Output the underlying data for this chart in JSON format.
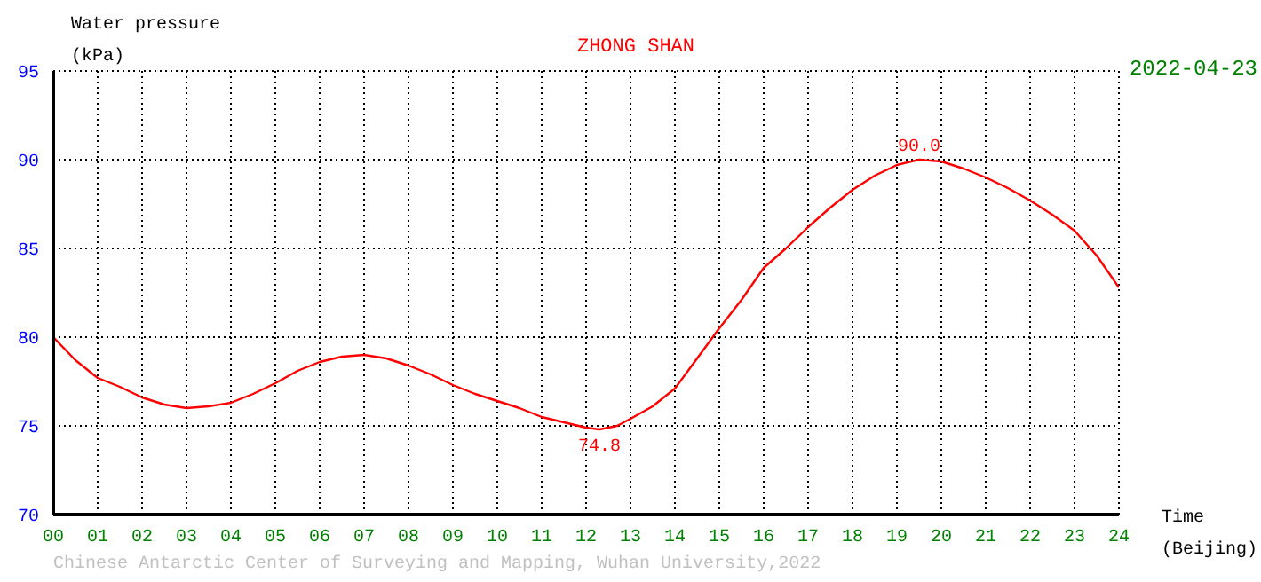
{
  "chart_data": {
    "type": "line",
    "title": "ZHONG SHAN",
    "subtitle": "2022-04-23",
    "xlabel": "Time\n(Beijing)",
    "ylabel": "Water pressure\n(kPa)",
    "x": [
      0,
      0.5,
      1,
      1.5,
      2,
      2.5,
      3,
      3.5,
      4,
      4.5,
      5,
      5.5,
      6,
      6.5,
      7,
      7.5,
      8,
      8.5,
      9,
      9.5,
      10,
      10.5,
      11,
      11.5,
      12,
      12.3,
      12.7,
      13,
      13.5,
      14,
      14.5,
      15,
      15.5,
      16,
      16.5,
      17,
      17.5,
      18,
      18.5,
      19,
      19.5,
      20,
      20.5,
      21,
      21.5,
      22,
      22.5,
      23,
      23.5,
      24
    ],
    "series": [
      {
        "color": "#ff0000",
        "values": [
          80.0,
          78.7,
          77.7,
          77.2,
          76.6,
          76.2,
          76.0,
          76.1,
          76.3,
          76.8,
          77.4,
          78.1,
          78.6,
          78.9,
          79.0,
          78.8,
          78.4,
          77.9,
          77.3,
          76.8,
          76.4,
          76.0,
          75.5,
          75.2,
          74.9,
          74.8,
          75.0,
          75.4,
          76.1,
          77.1,
          78.8,
          80.5,
          82.1,
          83.9,
          85.0,
          86.2,
          87.3,
          88.3,
          89.1,
          89.7,
          90.0,
          89.9,
          89.5,
          89.0,
          88.4,
          87.7,
          86.9,
          86.0,
          84.6,
          82.8
        ]
      }
    ],
    "xlim": [
      0,
      24
    ],
    "xticks": [
      {
        "value": 0,
        "label": "00"
      },
      {
        "value": 1,
        "label": "01"
      },
      {
        "value": 2,
        "label": "02"
      },
      {
        "value": 3,
        "label": "03"
      },
      {
        "value": 4,
        "label": "04"
      },
      {
        "value": 5,
        "label": "05"
      },
      {
        "value": 6,
        "label": "06"
      },
      {
        "value": 7,
        "label": "07"
      },
      {
        "value": 8,
        "label": "08"
      },
      {
        "value": 9,
        "label": "09"
      },
      {
        "value": 10,
        "label": "10"
      },
      {
        "value": 11,
        "label": "11"
      },
      {
        "value": 12,
        "label": "12"
      },
      {
        "value": 13,
        "label": "13"
      },
      {
        "value": 14,
        "label": "14"
      },
      {
        "value": 15,
        "label": "15"
      },
      {
        "value": 16,
        "label": "16"
      },
      {
        "value": 17,
        "label": "17"
      },
      {
        "value": 18,
        "label": "18"
      },
      {
        "value": 19,
        "label": "19"
      },
      {
        "value": 20,
        "label": "20"
      },
      {
        "value": 21,
        "label": "21"
      },
      {
        "value": 22,
        "label": "22"
      },
      {
        "value": 23,
        "label": "23"
      },
      {
        "value": 24,
        "label": "24"
      }
    ],
    "ylim": [
      70,
      95
    ],
    "yticks": [
      70,
      75,
      80,
      85,
      90,
      95
    ],
    "grid": true,
    "marker": "none",
    "line_style": "solid",
    "annotations": [
      {
        "text": "74.8",
        "x": 12.3,
        "y": 74.8
      },
      {
        "text": "90.0",
        "x": 19.5,
        "y": 90.0
      },
      "Chinese Antarctic Center of Surveying and Mapping, Wuhan University,2022"
    ]
  }
}
